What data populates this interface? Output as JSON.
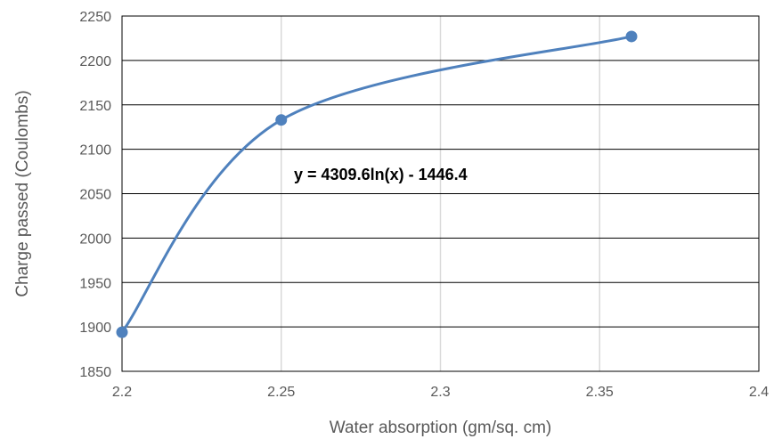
{
  "chart_data": {
    "type": "scatter",
    "title": "",
    "xlabel": "Water absorption (gm/sq. cm)",
    "ylabel": "Charge passed (Coulombs)",
    "xlim": [
      2.2,
      2.4
    ],
    "ylim": [
      1850,
      2250
    ],
    "x_ticks": [
      "2.2",
      "2.25",
      "2.3",
      "2.35",
      "2.4"
    ],
    "y_ticks": [
      "1850",
      "1900",
      "1950",
      "2000",
      "2050",
      "2100",
      "2150",
      "2200",
      "2250"
    ],
    "x_tick_values": [
      2.2,
      2.25,
      2.3,
      2.35,
      2.4
    ],
    "y_tick_values": [
      1850,
      1900,
      1950,
      2000,
      2050,
      2100,
      2150,
      2200,
      2250
    ],
    "grid": true,
    "legend": "none",
    "series": [
      {
        "x": [
          2.2,
          2.25,
          2.36
        ],
        "y": [
          1894,
          2133,
          2227
        ],
        "line_style": "smoothed",
        "color": "#4f81bd"
      }
    ],
    "annotations": [
      {
        "text": "y = 4309.6ln(x) - 1446.4"
      }
    ]
  }
}
